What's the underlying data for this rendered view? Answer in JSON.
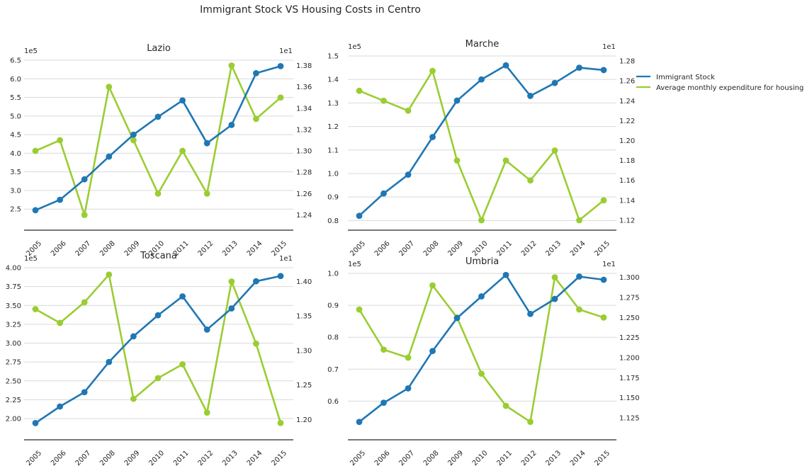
{
  "title": "Immigrant Stock VS Housing Costs in Centro",
  "legend": {
    "placement": "right",
    "entries": [
      {
        "label": "Immigrant Stock",
        "color": "#1f77b4"
      },
      {
        "label": "Average monthly expenditure for housing",
        "color": "#9acd32"
      }
    ]
  },
  "chart_data": [
    {
      "type": "line",
      "title": "Lazio",
      "x": [
        "2005",
        "2006",
        "2007",
        "2008",
        "2009",
        "2010",
        "2011",
        "2012",
        "2013",
        "2014",
        "2015"
      ],
      "left_axis": {
        "scale_label": "1e5",
        "ylim": [
          2.2,
          6.5
        ],
        "ticks": [
          "2.5",
          "3.0",
          "3.5",
          "4.0",
          "4.5",
          "5.0",
          "5.5",
          "6.0",
          "6.5"
        ]
      },
      "right_axis": {
        "scale_label": "1e1",
        "ylim": [
          1.235,
          1.385
        ],
        "ticks": [
          "1.24",
          "1.26",
          "1.28",
          "1.30",
          "1.32",
          "1.34",
          "1.36",
          "1.38"
        ]
      },
      "series": [
        {
          "name": "Immigrant Stock",
          "axis": "left",
          "color": "#1f77b4",
          "values": [
            2.47,
            2.75,
            3.3,
            3.91,
            4.5,
            4.98,
            5.42,
            4.27,
            4.76,
            6.15,
            6.34
          ]
        },
        {
          "name": "Average monthly expenditure for housing",
          "axis": "right",
          "color": "#9acd32",
          "values": [
            1.3,
            1.31,
            1.24,
            1.36,
            1.31,
            1.26,
            1.3,
            1.26,
            1.38,
            1.33,
            1.35
          ]
        }
      ]
    },
    {
      "type": "line",
      "title": "Marche",
      "x": [
        "2005",
        "2006",
        "2007",
        "2008",
        "2009",
        "2010",
        "2011",
        "2012",
        "2013",
        "2014",
        "2015"
      ],
      "left_axis": {
        "scale_label": "1e5",
        "ylim": [
          0.78,
          1.5
        ],
        "ticks": [
          "0.8",
          "0.9",
          "1.0",
          "1.1",
          "1.2",
          "1.3",
          "1.4",
          "1.5"
        ]
      },
      "right_axis": {
        "scale_label": "1e1",
        "ylim": [
          1.115,
          1.285
        ],
        "ticks": [
          "1.12",
          "1.14",
          "1.16",
          "1.18",
          "1.20",
          "1.22",
          "1.24",
          "1.26",
          "1.28"
        ]
      },
      "series": [
        {
          "name": "Immigrant Stock",
          "axis": "left",
          "color": "#1f77b4",
          "values": [
            0.82,
            0.915,
            0.995,
            1.155,
            1.31,
            1.4,
            1.46,
            1.33,
            1.385,
            1.45,
            1.44
          ]
        },
        {
          "name": "Average monthly expenditure for housing",
          "axis": "right",
          "color": "#9acd32",
          "values": [
            1.25,
            1.24,
            1.23,
            1.27,
            1.18,
            1.12,
            1.18,
            1.16,
            1.19,
            1.12,
            1.14
          ]
        }
      ]
    },
    {
      "type": "line",
      "title": "Toscana",
      "x": [
        "2005",
        "2006",
        "2007",
        "2008",
        "2009",
        "2010",
        "2011",
        "2012",
        "2013",
        "2014",
        "2015"
      ],
      "left_axis": {
        "scale_label": "1e5",
        "ylim": [
          1.85,
          4.0
        ],
        "ticks": [
          "2.00",
          "2.25",
          "2.50",
          "2.75",
          "3.00",
          "3.25",
          "3.50",
          "3.75",
          "4.00"
        ]
      },
      "right_axis": {
        "scale_label": "1e1",
        "ylim": [
          1.185,
          1.42
        ],
        "ticks": [
          "1.20",
          "1.25",
          "1.30",
          "1.35",
          "1.40"
        ]
      },
      "series": [
        {
          "name": "Immigrant Stock",
          "axis": "left",
          "color": "#1f77b4",
          "values": [
            1.94,
            2.16,
            2.35,
            2.75,
            3.09,
            3.37,
            3.62,
            3.18,
            3.46,
            3.82,
            3.89
          ]
        },
        {
          "name": "Average monthly expenditure for housing",
          "axis": "right",
          "color": "#9acd32",
          "values": [
            1.36,
            1.34,
            1.37,
            1.41,
            1.23,
            1.26,
            1.28,
            1.21,
            1.4,
            1.31,
            1.195
          ]
        }
      ]
    },
    {
      "type": "line",
      "title": "Umbria",
      "x": [
        "2005",
        "2006",
        "2007",
        "2008",
        "2009",
        "2010",
        "2011",
        "2012",
        "2013",
        "2014",
        "2015"
      ],
      "left_axis": {
        "scale_label": "1e5",
        "ylim": [
          0.51,
          1.0
        ],
        "ticks": [
          "0.6",
          "0.7",
          "0.8",
          "0.9",
          "1.0"
        ]
      },
      "right_axis": {
        "scale_label": "1e1",
        "ylim": [
          1.11,
          1.305
        ],
        "ticks": [
          "1.125",
          "1.150",
          "1.175",
          "1.200",
          "1.225",
          "1.250",
          "1.275",
          "1.300"
        ]
      },
      "series": [
        {
          "name": "Immigrant Stock",
          "axis": "left",
          "color": "#1f77b4",
          "values": [
            0.535,
            0.595,
            0.64,
            0.757,
            0.86,
            0.928,
            0.995,
            0.873,
            0.92,
            0.99,
            0.98
          ]
        },
        {
          "name": "Average monthly expenditure for housing",
          "axis": "right",
          "color": "#9acd32",
          "values": [
            1.26,
            1.21,
            1.2,
            1.29,
            1.25,
            1.18,
            1.14,
            1.12,
            1.3,
            1.26,
            1.25
          ]
        }
      ]
    }
  ]
}
